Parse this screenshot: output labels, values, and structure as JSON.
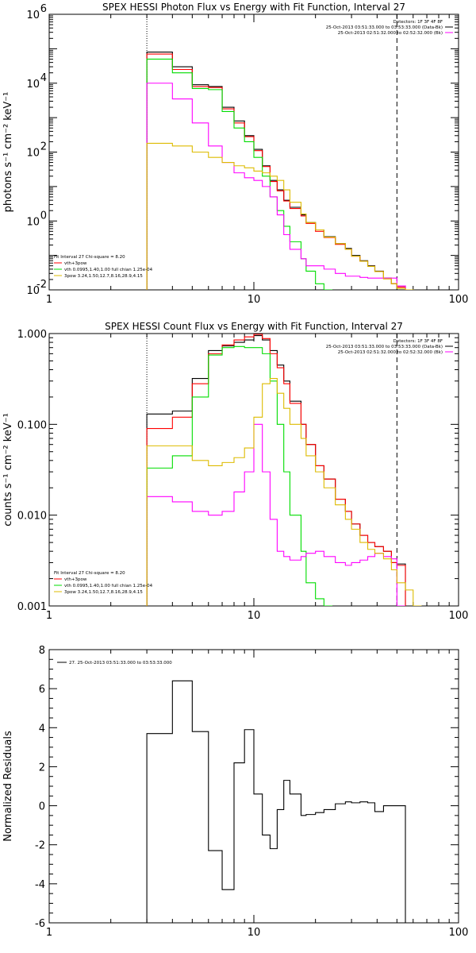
{
  "chart_data": [
    {
      "type": "line",
      "title": "SPEX HESSI Photon Flux vs Energy with Fit Function, Interval 27",
      "xlabel": "",
      "ylabel": "photons s⁻¹ cm⁻² keV⁻¹",
      "xscale": "log",
      "yscale": "log",
      "xlim": [
        1,
        100
      ],
      "ylim": [
        0.01,
        1000000
      ],
      "xticks": [
        1,
        10,
        100
      ],
      "xticklabels": [
        "1",
        "10",
        "100"
      ],
      "yticks": [
        0.01,
        1,
        100,
        10000,
        1000000
      ],
      "yticklabels_base": [
        "10",
        "10",
        "10",
        "10",
        "10"
      ],
      "yticklabels_exp": [
        "-2",
        "0",
        "2",
        "4",
        "6"
      ],
      "vlines": [
        {
          "x": 3,
          "style": "dotted"
        },
        {
          "x": 50,
          "style": "dashed"
        }
      ],
      "legend_topright": [
        "Detectors: 1F 3F 4F 8F",
        "25-Oct-2013 03:51:33.000 to 03:53:33.000 (Data-Bk)",
        "25-Oct-2013 02:51:32.000 to 02:52:32.000 (Bk)"
      ],
      "legend_bottomleft": [
        "Fit Interval 27    Chi-square = 8.20",
        "vth+3pow",
        "vth 0.0995,1.40,1.00  full chian 1.25e-04",
        "3pow 3.24,1.50,12.7,8.16,28.9,4.15"
      ],
      "series": [
        {
          "name": "Data-Bk",
          "color": "#000000",
          "x": [
            3,
            4,
            5,
            6,
            7,
            8,
            9,
            10,
            11,
            12,
            13,
            14,
            15,
            17,
            18,
            20,
            22,
            25,
            28,
            30,
            33,
            36,
            39,
            43,
            47,
            50
          ],
          "y": [
            80000,
            30000,
            9000,
            8000,
            2000,
            800,
            300,
            120,
            40,
            15,
            8,
            4,
            2.5,
            1.5,
            0.9,
            0.55,
            0.35,
            0.22,
            0.16,
            0.1,
            0.07,
            0.05,
            0.035,
            0.022,
            0.015,
            0.013
          ]
        },
        {
          "name": "vth+3pow",
          "color": "#ff0000",
          "x": [
            3,
            4,
            5,
            6,
            7,
            8,
            9,
            10,
            11,
            12,
            13,
            14,
            15,
            17,
            18,
            20,
            22,
            25,
            28,
            30,
            33,
            36,
            39,
            43,
            47,
            50
          ],
          "y": [
            70000,
            25000,
            8000,
            7500,
            1800,
            700,
            280,
            110,
            38,
            14,
            7.5,
            3.8,
            2.3,
            1.4,
            0.85,
            0.5,
            0.33,
            0.21,
            0.15,
            0.095,
            0.068,
            0.048,
            0.034,
            0.021,
            0.015,
            0.012
          ]
        },
        {
          "name": "vth",
          "color": "#00dd00",
          "x": [
            3,
            4,
            5,
            6,
            7,
            8,
            9,
            10,
            11,
            12,
            13,
            14,
            15,
            17,
            18,
            20,
            22
          ],
          "y": [
            50000,
            20000,
            7000,
            6500,
            1500,
            500,
            200,
            70,
            20,
            5,
            2,
            0.7,
            0.25,
            0.08,
            0.035,
            0.015,
            0.008
          ]
        },
        {
          "name": "3pow",
          "color": "#ff00ff",
          "x": [
            3,
            4,
            5,
            6,
            7,
            8,
            9,
            10,
            11,
            12,
            13,
            14,
            15,
            17,
            18,
            20,
            22,
            25,
            28,
            30,
            33,
            36,
            39,
            43,
            47,
            50
          ],
          "y": [
            10000,
            3500,
            700,
            150,
            50,
            25,
            18,
            15,
            10,
            5,
            1.5,
            0.4,
            0.15,
            0.08,
            0.05,
            0.05,
            0.04,
            0.03,
            0.025,
            0.025,
            0.023,
            0.022,
            0.022,
            0.022,
            0.022,
            0.013
          ]
        },
        {
          "name": "3pow (hi)",
          "color": "#ddbb00",
          "x": [
            3,
            4,
            5,
            6,
            7,
            8,
            9,
            10,
            11,
            12,
            13,
            14,
            15,
            17,
            18,
            20,
            22,
            25,
            28,
            30,
            33,
            36,
            39,
            43,
            47,
            50,
            55
          ],
          "y": [
            180,
            150,
            100,
            70,
            50,
            40,
            35,
            28,
            25,
            20,
            15,
            8,
            3.5,
            1.6,
            0.9,
            0.55,
            0.34,
            0.22,
            0.15,
            0.095,
            0.068,
            0.048,
            0.034,
            0.021,
            0.015,
            0.011,
            0.007
          ]
        }
      ]
    },
    {
      "type": "line",
      "title": "SPEX HESSI Count Flux vs Energy with Fit Function, Interval 27",
      "xlabel": "",
      "ylabel": "counts s⁻¹ cm⁻² keV⁻¹",
      "xscale": "log",
      "yscale": "log",
      "xlim": [
        1,
        100
      ],
      "ylim": [
        0.001,
        1.0
      ],
      "xticks": [
        1,
        10,
        100
      ],
      "xticklabels": [
        "1",
        "10",
        "100"
      ],
      "yticks": [
        0.001,
        0.01,
        0.1,
        1.0
      ],
      "yticklabels": [
        "0.001",
        "0.010",
        "0.100",
        "1.000"
      ],
      "vlines": [
        {
          "x": 3,
          "style": "dotted"
        },
        {
          "x": 50,
          "style": "dashed"
        }
      ],
      "legend_topright": [
        "Detectors: 1F 3F 4F 8F",
        "25-Oct-2013 03:51:33.000 to 03:53:33.000 (Data-Bk)",
        "25-Oct-2013 02:51:32.000 to 02:52:32.000 (Bk)"
      ],
      "legend_bottomleft": [
        "Fit Interval 27    Chi-square = 8.20",
        "vth+3pow",
        "vth 0.0995,1.40,1.00  full chian 1.25e-04",
        "3pow 3.24,1.50,12.7,8.16,28.9,4.15"
      ],
      "series": [
        {
          "name": "Data-Bk",
          "color": "#000000",
          "x": [
            3,
            4,
            5,
            6,
            7,
            8,
            9,
            10,
            11,
            12,
            13,
            14,
            15,
            17,
            18,
            20,
            22,
            25,
            28,
            30,
            33,
            36,
            39,
            43,
            47,
            50
          ],
          "y": [
            0.13,
            0.14,
            0.32,
            0.65,
            0.73,
            0.8,
            0.85,
            0.95,
            0.85,
            0.65,
            0.45,
            0.3,
            0.18,
            0.1,
            0.06,
            0.035,
            0.025,
            0.015,
            0.011,
            0.008,
            0.006,
            0.005,
            0.0045,
            0.004,
            0.003,
            0.0029
          ]
        },
        {
          "name": "vth+3pow",
          "color": "#ff0000",
          "x": [
            3,
            4,
            5,
            6,
            7,
            8,
            9,
            10,
            11,
            12,
            13,
            14,
            15,
            17,
            18,
            20,
            22,
            25,
            28,
            30,
            33,
            36,
            39,
            43,
            47,
            50
          ],
          "y": [
            0.09,
            0.12,
            0.28,
            0.6,
            0.75,
            0.85,
            0.92,
            0.98,
            0.88,
            0.6,
            0.42,
            0.28,
            0.17,
            0.1,
            0.06,
            0.035,
            0.025,
            0.015,
            0.011,
            0.008,
            0.006,
            0.005,
            0.0045,
            0.004,
            0.003,
            0.0028
          ]
        },
        {
          "name": "vth",
          "color": "#00dd00",
          "x": [
            3,
            4,
            5,
            6,
            7,
            8,
            9,
            10,
            11,
            12,
            13,
            14,
            15,
            17,
            18,
            20,
            22
          ],
          "y": [
            0.033,
            0.045,
            0.2,
            0.58,
            0.7,
            0.72,
            0.7,
            0.7,
            0.6,
            0.3,
            0.1,
            0.03,
            0.01,
            0.004,
            0.0018,
            0.0012,
            0.0008
          ]
        },
        {
          "name": "3pow",
          "color": "#ff00ff",
          "x": [
            3,
            4,
            5,
            6,
            7,
            8,
            9,
            10,
            11,
            12,
            13,
            14,
            15,
            17,
            18,
            20,
            22,
            25,
            28,
            30,
            33,
            36,
            39,
            43,
            47,
            50
          ],
          "y": [
            0.016,
            0.014,
            0.011,
            0.01,
            0.011,
            0.018,
            0.03,
            0.1,
            0.03,
            0.009,
            0.004,
            0.0035,
            0.0032,
            0.0035,
            0.0038,
            0.004,
            0.0035,
            0.003,
            0.0028,
            0.003,
            0.0032,
            0.0035,
            0.0038,
            0.0035,
            0.0033,
            0.001
          ]
        },
        {
          "name": "3pow (hi)",
          "color": "#ddbb00",
          "x": [
            3,
            4,
            5,
            6,
            7,
            8,
            9,
            10,
            11,
            12,
            13,
            14,
            15,
            17,
            18,
            20,
            22,
            25,
            28,
            30,
            33,
            36,
            39,
            43,
            47,
            50,
            55,
            60
          ],
          "y": [
            0.058,
            0.058,
            0.04,
            0.035,
            0.038,
            0.043,
            0.055,
            0.12,
            0.28,
            0.32,
            0.22,
            0.15,
            0.1,
            0.07,
            0.045,
            0.03,
            0.02,
            0.013,
            0.009,
            0.007,
            0.005,
            0.0042,
            0.0038,
            0.0033,
            0.0025,
            0.0018,
            0.0015,
            0.001
          ]
        }
      ]
    },
    {
      "type": "line",
      "title": "",
      "xlabel": "",
      "ylabel": "Normalized Residuals",
      "xscale": "log",
      "yscale": "linear",
      "xlim": [
        1,
        100
      ],
      "ylim": [
        -6,
        8
      ],
      "xticks": [
        1,
        10,
        100
      ],
      "xticklabels": [
        "1",
        "10",
        "100"
      ],
      "yticks": [
        -6,
        -4,
        -2,
        0,
        2,
        4,
        6,
        8
      ],
      "yticklabels": [
        "-6",
        "-4",
        "-2",
        "0",
        "2",
        "4",
        "6",
        "8"
      ],
      "legend_topleft": [
        "27. 25-Oct-2013 03:51:33.000 to 03:53:33.000"
      ],
      "series": [
        {
          "name": "27. 25-Oct-2013 03:51:33.000 to 03:53:33.000",
          "color": "#000000",
          "x": [
            3,
            4,
            5,
            6,
            7,
            8,
            9,
            10,
            11,
            12,
            13,
            14,
            15,
            17,
            18,
            20,
            22,
            25,
            28,
            30,
            33,
            36,
            39,
            43,
            47,
            50
          ],
          "y": [
            3.7,
            6.4,
            3.8,
            -2.3,
            -4.3,
            2.2,
            3.9,
            0.6,
            -1.5,
            -2.2,
            -0.2,
            1.3,
            0.6,
            -0.5,
            -0.45,
            -0.35,
            -0.2,
            0.1,
            0.2,
            0.15,
            0.2,
            0.15,
            -0.3,
            0.0,
            0.0,
            0.0
          ]
        }
      ]
    }
  ]
}
